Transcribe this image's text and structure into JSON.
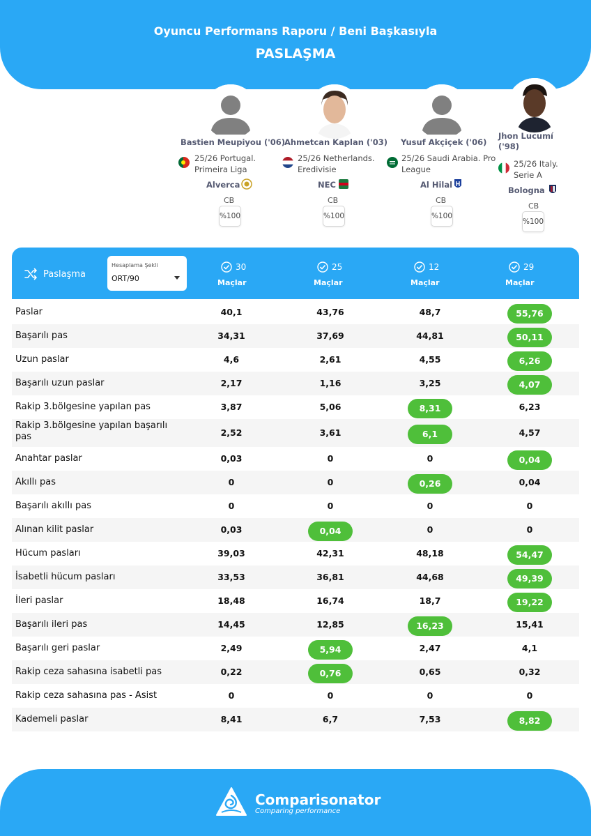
{
  "header": {
    "title": "Oyuncu Performans Raporu / Beni Başkasıyla",
    "subtitle": "PASLAŞMA"
  },
  "players": [
    {
      "name": "Bastien Meupiyou ('06)",
      "league": "25/26 Portugal. Primeira Liga",
      "club": "Alverca",
      "position": "CB",
      "percent": "%100",
      "photo": "silhouette-avatar",
      "flag_icon": "portugal-flag-icon",
      "club_icon": "alverca-crest-icon"
    },
    {
      "name": "Ahmetcan Kaplan ('03)",
      "league": "25/26 Netherlands. Eredivisie",
      "club": "NEC",
      "position": "CB",
      "percent": "%100",
      "photo": "player-photo",
      "flag_icon": "netherlands-flag-icon",
      "club_icon": "nec-crest-icon"
    },
    {
      "name": "Yusuf Akçiçek ('06)",
      "league": "25/26 Saudi Arabia. Pro League",
      "club": "Al Hilal",
      "position": "CB",
      "percent": "%100",
      "photo": "silhouette-avatar",
      "flag_icon": "saudi-arabia-flag-icon",
      "club_icon": "al-hilal-crest-icon"
    },
    {
      "name": "Jhon Lucumí ('98)",
      "league": "25/26 Italy. Serie A",
      "club": "Bologna",
      "position": "CB",
      "percent": "%100",
      "photo": "player-photo",
      "flag_icon": "italy-flag-icon",
      "club_icon": "bologna-crest-icon"
    }
  ],
  "table": {
    "category_label": "Paslaşma",
    "calc_label": "Hesaplama Şekli",
    "calc_value": "ORT/90",
    "matches": [
      {
        "count": "30",
        "label": "Maçlar"
      },
      {
        "count": "25",
        "label": "Maçlar"
      },
      {
        "count": "12",
        "label": "Maçlar"
      },
      {
        "count": "29",
        "label": "Maçlar"
      }
    ],
    "highlight_color": "#4fbf3a",
    "rows": [
      {
        "metric": "Paslar",
        "values": [
          "40,1",
          "43,76",
          "48,7",
          "55,76"
        ],
        "best": 3
      },
      {
        "metric": "Başarılı pas",
        "values": [
          "34,31",
          "37,69",
          "44,81",
          "50,11"
        ],
        "best": 3
      },
      {
        "metric": "Uzun paslar",
        "values": [
          "4,6",
          "2,61",
          "4,55",
          "6,26"
        ],
        "best": 3
      },
      {
        "metric": "Başarılı uzun paslar",
        "values": [
          "2,17",
          "1,16",
          "3,25",
          "4,07"
        ],
        "best": 3
      },
      {
        "metric": "Rakip 3.bölgesine yapılan pas",
        "values": [
          "3,87",
          "5,06",
          "8,31",
          "6,23"
        ],
        "best": 2
      },
      {
        "metric": "Rakip 3.bölgesine yapılan başarılı pas",
        "values": [
          "2,52",
          "3,61",
          "6,1",
          "4,57"
        ],
        "best": 2
      },
      {
        "metric": "Anahtar paslar",
        "values": [
          "0,03",
          "0",
          "0",
          "0,04"
        ],
        "best": 3
      },
      {
        "metric": "Akıllı pas",
        "values": [
          "0",
          "0",
          "0,26",
          "0,04"
        ],
        "best": 2
      },
      {
        "metric": "Başarılı akıllı pas",
        "values": [
          "0",
          "0",
          "0",
          "0"
        ],
        "best": -1
      },
      {
        "metric": "Alınan kilit paslar",
        "values": [
          "0,03",
          "0,04",
          "0",
          "0"
        ],
        "best": 1
      },
      {
        "metric": "Hücum pasları",
        "values": [
          "39,03",
          "42,31",
          "48,18",
          "54,47"
        ],
        "best": 3
      },
      {
        "metric": "İsabetli hücum pasları",
        "values": [
          "33,53",
          "36,81",
          "44,68",
          "49,39"
        ],
        "best": 3
      },
      {
        "metric": "İleri paslar",
        "values": [
          "18,48",
          "16,74",
          "18,7",
          "19,22"
        ],
        "best": 3
      },
      {
        "metric": "Başarılı ileri pas",
        "values": [
          "14,45",
          "12,85",
          "16,23",
          "15,41"
        ],
        "best": 2
      },
      {
        "metric": "Başarılı geri paslar",
        "values": [
          "2,49",
          "5,94",
          "2,47",
          "4,1"
        ],
        "best": 1
      },
      {
        "metric": "Rakip ceza sahasına isabetli pas",
        "values": [
          "0,22",
          "0,76",
          "0,65",
          "0,32"
        ],
        "best": 1
      },
      {
        "metric": "Rakip ceza sahasına pas - Asist",
        "values": [
          "0",
          "0",
          "0",
          "0"
        ],
        "best": -1
      },
      {
        "metric": "Kademeli paslar",
        "values": [
          "8,41",
          "6,7",
          "7,53",
          "8,82"
        ],
        "best": 3
      }
    ]
  },
  "footer": {
    "brand": "Comparisonator",
    "tagline": "Comparing performance"
  }
}
